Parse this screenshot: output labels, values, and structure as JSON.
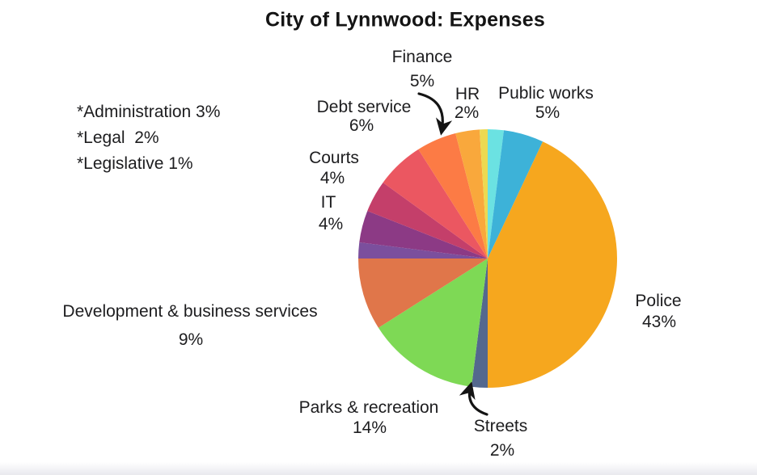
{
  "chart_data": {
    "type": "pie",
    "title": "City of Lynnwood: Expenses",
    "direction": "clockwise",
    "start_angle_deg": 0,
    "legend_position": "around-slices",
    "slices": [
      {
        "label": "HR",
        "value": 2,
        "pct_label": "2%",
        "color": "#6BE2E2"
      },
      {
        "label": "Public works",
        "value": 5,
        "pct_label": "5%",
        "color": "#3DB2D8"
      },
      {
        "label": "Police",
        "value": 43,
        "pct_label": "43%",
        "color": "#F6A71E"
      },
      {
        "label": "Streets",
        "value": 2,
        "pct_label": "2%",
        "color": "#54688E"
      },
      {
        "label": "Parks & recreation",
        "value": 14,
        "pct_label": "14%",
        "color": "#7ED955"
      },
      {
        "label": "Development & business services",
        "value": 9,
        "pct_label": "9%",
        "color": "#E0764A"
      },
      {
        "label": "Legal",
        "value": 2,
        "pct_label": "2%",
        "color": "#7B4F9D"
      },
      {
        "label": "IT",
        "value": 4,
        "pct_label": "4%",
        "color": "#8C3A85"
      },
      {
        "label": "Courts",
        "value": 4,
        "pct_label": "4%",
        "color": "#C43F6A"
      },
      {
        "label": "Debt service",
        "value": 6,
        "pct_label": "6%",
        "color": "#EB5761"
      },
      {
        "label": "Finance",
        "value": 5,
        "pct_label": "5%",
        "color": "#FC7B45"
      },
      {
        "label": "Administration",
        "value": 3,
        "pct_label": "3%",
        "color": "#F9A83C"
      },
      {
        "label": "Legislative",
        "value": 1,
        "pct_label": "1%",
        "color": "#ECD951"
      }
    ],
    "footnotes": [
      "*Administration 3%",
      "*Legal  2%",
      "*Legislative 1%"
    ],
    "annotation_arrows": [
      "finance-arrow",
      "streets-arrow"
    ],
    "text_color": "#1d1d1f"
  }
}
